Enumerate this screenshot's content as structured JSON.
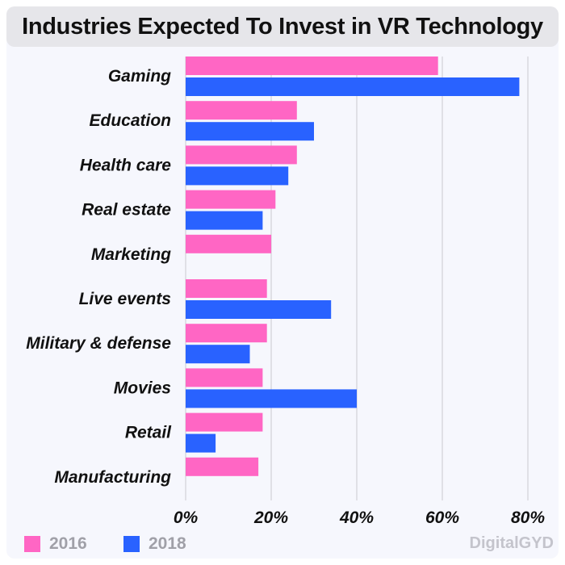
{
  "chart_data": {
    "type": "bar",
    "orientation": "horizontal",
    "title": "Industries Expected To Invest in VR Technology",
    "categories": [
      "Gaming",
      "Education",
      "Health care",
      "Real estate",
      "Marketing",
      "Live events",
      "Military & defense",
      "Movies",
      "Retail",
      "Manufacturing"
    ],
    "series": [
      {
        "name": "2016",
        "color": "#ff66c4",
        "values": [
          59,
          26,
          26,
          21,
          20,
          19,
          19,
          18,
          18,
          17
        ]
      },
      {
        "name": "2018",
        "color": "#2962ff",
        "values": [
          78,
          30,
          24,
          18,
          null,
          34,
          15,
          40,
          7,
          null
        ]
      }
    ],
    "xlim": [
      0,
      80
    ],
    "xticks": [
      "0%",
      "20%",
      "40%",
      "60%",
      "80%"
    ],
    "grid": true,
    "legend": "bottom-left"
  },
  "brand": "DigitalGYD"
}
